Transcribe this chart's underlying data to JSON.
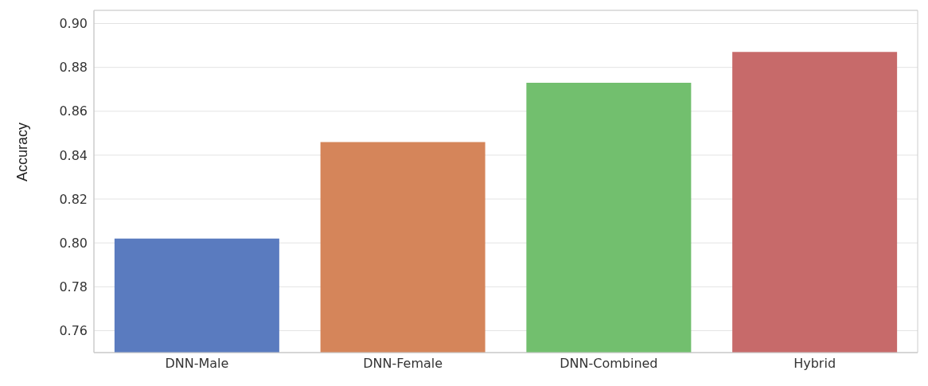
{
  "chart_data": {
    "type": "bar",
    "ylabel": "Accuracy",
    "categories": [
      "DNN-Male",
      "DNN-Female",
      "DNN-Combined",
      "Hybrid"
    ],
    "values": [
      0.802,
      0.846,
      0.873,
      0.887
    ],
    "colors": [
      "#5a7bbf",
      "#d5855a",
      "#72bf6e",
      "#c76a6a"
    ],
    "ylim": [
      0.75,
      0.906
    ],
    "yticks": [
      0.76,
      0.78,
      {
        "value": 0.8,
        "label": "0.80"
      },
      0.82,
      0.84,
      0.86,
      0.88,
      {
        "value": 0.9,
        "label": "0.90"
      }
    ],
    "grid": "y"
  }
}
